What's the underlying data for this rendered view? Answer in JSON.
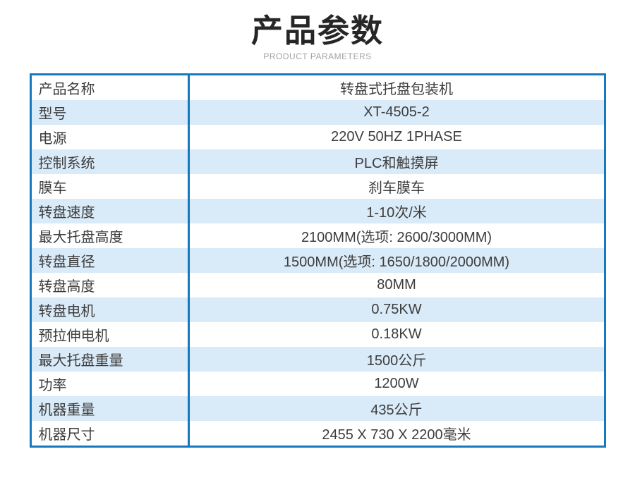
{
  "header": {
    "title": "产品参数",
    "subtitle": "PRODUCT PARAMETERS"
  },
  "colors": {
    "border_blue": "#1678bd",
    "row_alt_blue": "#d9eaf8",
    "row_white": "#ffffff",
    "text_dark": "#3d3d3d",
    "title_black": "#262626",
    "subtitle_gray": "#a3a3a3"
  },
  "table": {
    "rows": [
      {
        "label": "产品名称",
        "value": "转盘式托盘包装机"
      },
      {
        "label": "型号",
        "value": "XT-4505-2"
      },
      {
        "label": "电源",
        "value": "220V 50HZ 1PHASE"
      },
      {
        "label": "控制系统",
        "value": "PLC和触摸屏"
      },
      {
        "label": "膜车",
        "value": "刹车膜车"
      },
      {
        "label": "转盘速度",
        "value": "1-10次/米"
      },
      {
        "label": "最大托盘高度",
        "value": "2100MM(选项: 2600/3000MM)"
      },
      {
        "label": "转盘直径",
        "value": "1500MM(选项: 1650/1800/2000MM)"
      },
      {
        "label": "转盘高度",
        "value": "80MM"
      },
      {
        "label": "转盘电机",
        "value": "0.75KW"
      },
      {
        "label": "预拉伸电机",
        "value": "0.18KW"
      },
      {
        "label": "最大托盘重量",
        "value": "1500公斤"
      },
      {
        "label": "功率",
        "value": "1200W"
      },
      {
        "label": "机器重量",
        "value": "435公斤"
      },
      {
        "label": "机器尺寸",
        "value": "2455 X 730 X 2200毫米"
      }
    ]
  }
}
